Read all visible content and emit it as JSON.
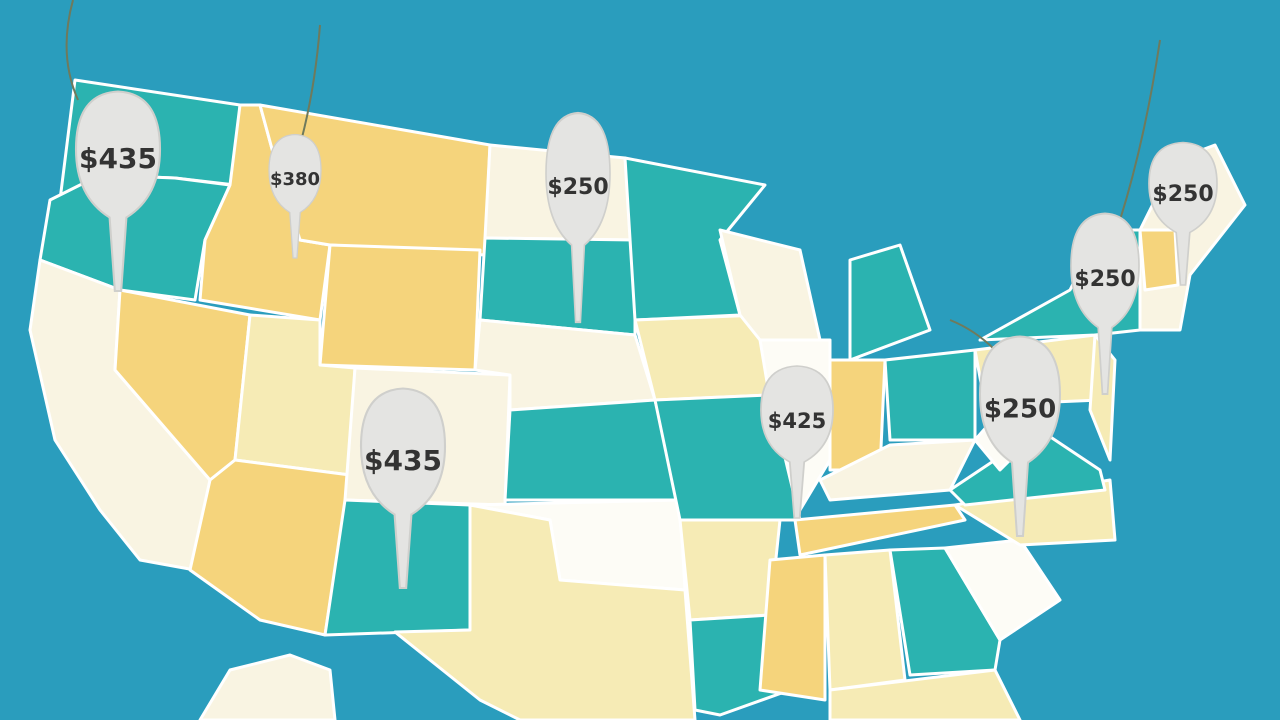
{
  "price_tags": [
    {
      "label": "$435"
    },
    {
      "label": "$380"
    },
    {
      "label": "$250"
    },
    {
      "label": "$250"
    },
    {
      "label": "$250"
    },
    {
      "label": "$425"
    },
    {
      "label": "$435"
    },
    {
      "label": "$250"
    }
  ]
}
